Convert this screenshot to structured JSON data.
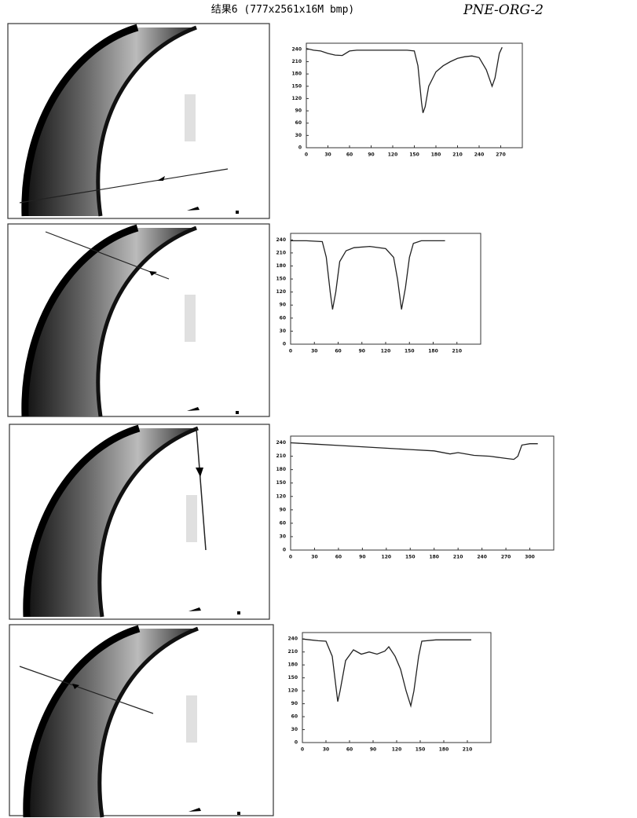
{
  "header": {
    "title": "结果6 (777x2561x16M bmp)",
    "note": "PNE-ORG-2"
  },
  "chart_data": [
    {
      "type": "line",
      "x": [
        0,
        10,
        20,
        30,
        40,
        50,
        60,
        70,
        80,
        90,
        100,
        110,
        120,
        130,
        140,
        150,
        155,
        160,
        162,
        165,
        170,
        180,
        190,
        200,
        210,
        220,
        230,
        240,
        250,
        258,
        262,
        268,
        272
      ],
      "values": [
        242,
        238,
        236,
        230,
        226,
        225,
        236,
        238,
        238,
        238,
        238,
        238,
        238,
        238,
        238,
        236,
        200,
        110,
        85,
        100,
        150,
        185,
        200,
        210,
        218,
        222,
        224,
        220,
        190,
        150,
        170,
        230,
        245
      ],
      "color": "#222222",
      "xlim": [
        0,
        300
      ],
      "ylim": [
        0,
        255
      ],
      "xticks": [
        0,
        30,
        60,
        90,
        120,
        150,
        180,
        210,
        240,
        270
      ],
      "yticks": [
        0,
        30,
        60,
        90,
        120,
        150,
        180,
        210,
        240
      ]
    },
    {
      "type": "line",
      "x": [
        0,
        20,
        40,
        45,
        50,
        53,
        57,
        62,
        70,
        80,
        100,
        120,
        130,
        135,
        140,
        145,
        150,
        155,
        165,
        180,
        195
      ],
      "values": [
        238,
        238,
        236,
        200,
        120,
        80,
        120,
        190,
        215,
        222,
        225,
        220,
        200,
        150,
        80,
        130,
        200,
        232,
        238,
        238,
        238
      ],
      "color": "#222222",
      "xlim": [
        0,
        240
      ],
      "ylim": [
        0,
        255
      ],
      "xticks": [
        0,
        30,
        60,
        90,
        120,
        150,
        180,
        210
      ],
      "yticks": [
        0,
        30,
        60,
        90,
        120,
        150,
        180,
        210,
        240
      ]
    },
    {
      "type": "line",
      "x": [
        0,
        30,
        60,
        90,
        120,
        150,
        180,
        200,
        210,
        230,
        250,
        270,
        280,
        285,
        290,
        300,
        310
      ],
      "values": [
        240,
        237,
        234,
        231,
        228,
        225,
        222,
        215,
        218,
        212,
        210,
        205,
        203,
        210,
        235,
        238,
        238
      ],
      "color": "#222222",
      "xlim": [
        0,
        330
      ],
      "ylim": [
        0,
        255
      ],
      "xticks": [
        0,
        30,
        60,
        90,
        120,
        150,
        180,
        210,
        240,
        270,
        300
      ],
      "yticks": [
        0,
        30,
        60,
        90,
        120,
        150,
        180,
        210,
        240
      ]
    },
    {
      "type": "line",
      "x": [
        0,
        10,
        20,
        30,
        38,
        42,
        45,
        48,
        55,
        65,
        75,
        85,
        95,
        105,
        110,
        118,
        125,
        132,
        138,
        142,
        148,
        152,
        170,
        200,
        215
      ],
      "values": [
        240,
        238,
        236,
        235,
        200,
        140,
        95,
        120,
        190,
        215,
        205,
        210,
        205,
        212,
        222,
        200,
        170,
        120,
        85,
        120,
        200,
        235,
        238,
        238,
        238
      ],
      "color": "#222222",
      "xlim": [
        0,
        240
      ],
      "ylim": [
        0,
        255
      ],
      "xticks": [
        0,
        30,
        60,
        90,
        120,
        150,
        180,
        210
      ],
      "yticks": [
        0,
        30,
        60,
        90,
        120,
        150,
        180,
        210,
        240
      ]
    }
  ]
}
